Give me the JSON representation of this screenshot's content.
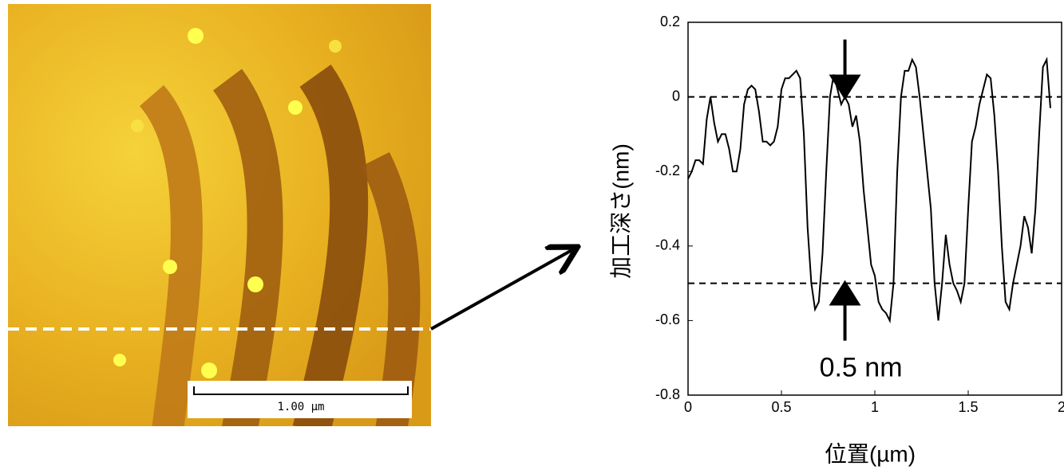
{
  "image": {
    "scale_bar_label": "1.00 µm"
  },
  "chart_data": {
    "type": "line",
    "xlabel": "位置(µm)",
    "ylabel": "加工深さ(nm)",
    "xlim": [
      0,
      2
    ],
    "ylim": [
      -0.8,
      0.2
    ],
    "xticks": [
      0,
      0.5,
      1,
      1.5,
      2
    ],
    "yticks": [
      0.2,
      0,
      -0.2,
      -0.4,
      -0.6,
      -0.8
    ],
    "reference_lines": [
      0,
      -0.5
    ],
    "annotation": {
      "text": "0.5 nm",
      "x": 0.84,
      "from": 0,
      "to": -0.5
    },
    "series": [
      {
        "color": "#000000",
        "x": [
          0,
          0.02,
          0.04,
          0.06,
          0.08,
          0.1,
          0.12,
          0.14,
          0.16,
          0.18,
          0.2,
          0.22,
          0.24,
          0.26,
          0.28,
          0.3,
          0.32,
          0.34,
          0.36,
          0.38,
          0.4,
          0.42,
          0.44,
          0.46,
          0.48,
          0.5,
          0.52,
          0.54,
          0.56,
          0.58,
          0.6,
          0.62,
          0.64,
          0.66,
          0.68,
          0.7,
          0.72,
          0.74,
          0.76,
          0.78,
          0.8,
          0.82,
          0.84,
          0.86,
          0.88,
          0.9,
          0.92,
          0.94,
          0.96,
          0.98,
          1.0,
          1.02,
          1.04,
          1.06,
          1.08,
          1.1,
          1.12,
          1.14,
          1.16,
          1.18,
          1.2,
          1.22,
          1.24,
          1.26,
          1.28,
          1.3,
          1.32,
          1.34,
          1.36,
          1.38,
          1.4,
          1.42,
          1.44,
          1.46,
          1.48,
          1.5,
          1.52,
          1.54,
          1.56,
          1.58,
          1.6,
          1.62,
          1.64,
          1.66,
          1.68,
          1.7,
          1.72,
          1.74,
          1.76,
          1.78,
          1.8,
          1.82,
          1.84,
          1.86,
          1.88,
          1.9,
          1.92,
          1.94
        ],
        "values": [
          -0.22,
          -0.2,
          -0.17,
          -0.17,
          -0.18,
          -0.06,
          0.0,
          -0.07,
          -0.12,
          -0.1,
          -0.1,
          -0.14,
          -0.2,
          -0.2,
          -0.14,
          -0.02,
          0.02,
          0.03,
          0.02,
          -0.04,
          -0.12,
          -0.12,
          -0.13,
          -0.12,
          -0.08,
          0.02,
          0.05,
          0.05,
          0.06,
          0.07,
          0.05,
          -0.1,
          -0.35,
          -0.5,
          -0.57,
          -0.55,
          -0.42,
          -0.2,
          0.0,
          0.06,
          0.02,
          -0.02,
          0.0,
          -0.02,
          -0.08,
          -0.05,
          -0.12,
          -0.25,
          -0.35,
          -0.45,
          -0.48,
          -0.55,
          -0.57,
          -0.58,
          -0.6,
          -0.5,
          -0.2,
          0.0,
          0.07,
          0.07,
          0.1,
          0.08,
          0.0,
          -0.1,
          -0.2,
          -0.3,
          -0.5,
          -0.6,
          -0.5,
          -0.37,
          -0.45,
          -0.5,
          -0.52,
          -0.55,
          -0.5,
          -0.3,
          -0.12,
          -0.08,
          -0.02,
          0.02,
          0.06,
          0.05,
          -0.05,
          -0.2,
          -0.4,
          -0.55,
          -0.57,
          -0.5,
          -0.45,
          -0.4,
          -0.32,
          -0.35,
          -0.42,
          -0.3,
          -0.1,
          0.08,
          0.1,
          -0.03
        ]
      }
    ]
  }
}
